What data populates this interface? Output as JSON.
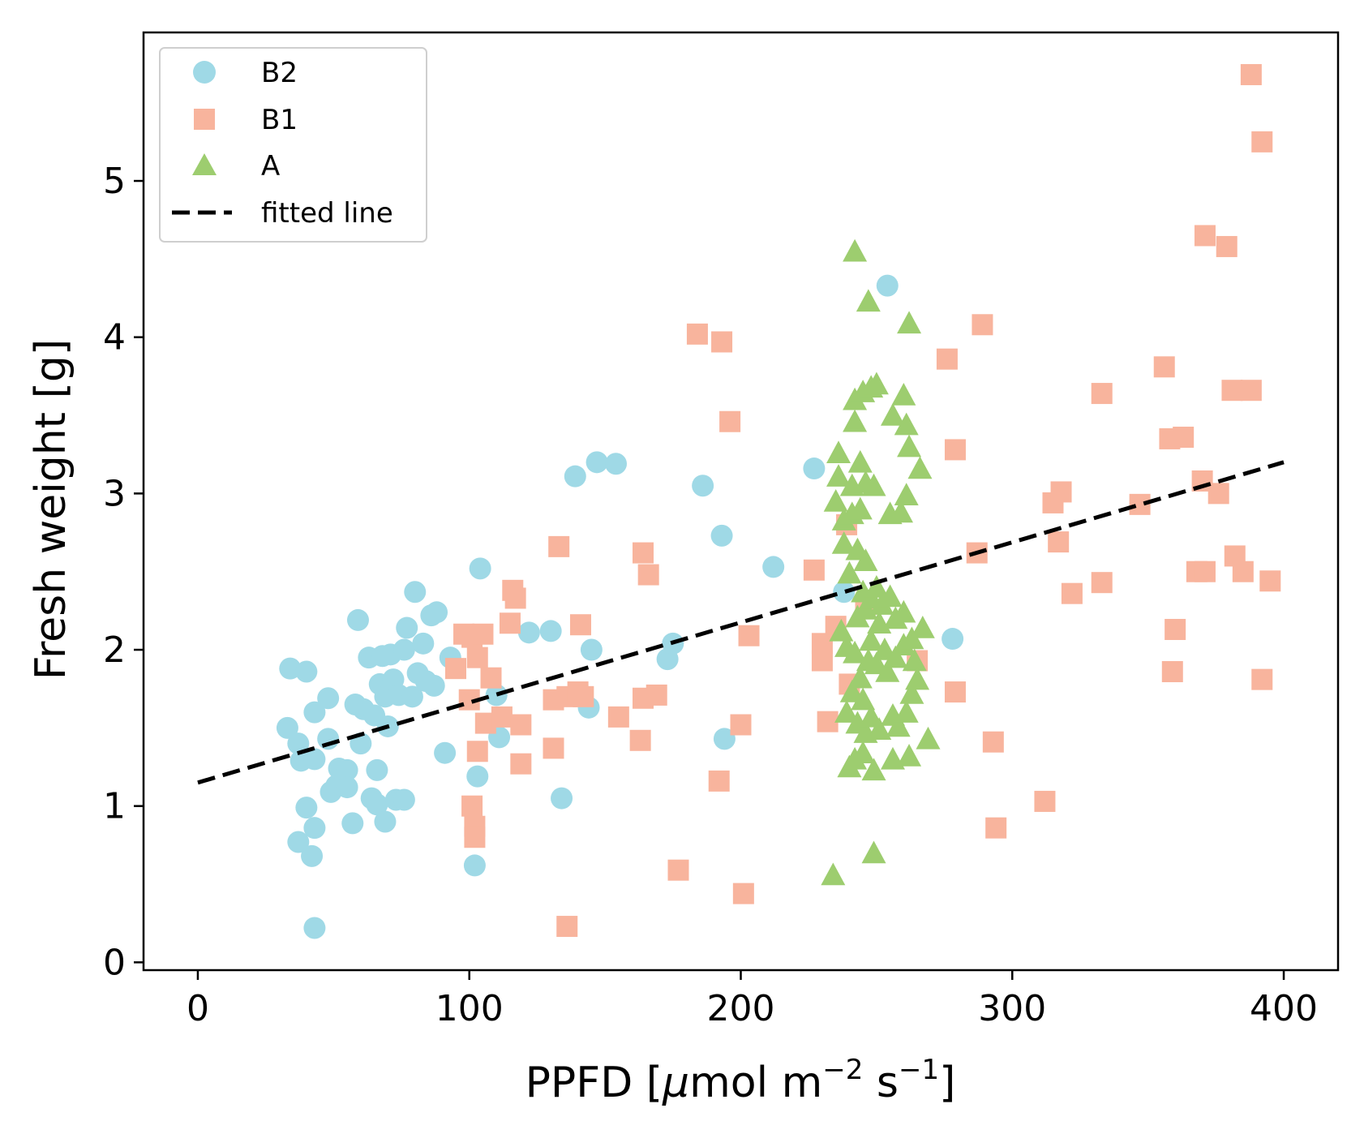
{
  "chart_data": {
    "type": "scatter",
    "xlabel": "PPFD [μmol m⁻² s⁻¹]",
    "xlabel_parts": {
      "pre": "PPFD [",
      "mu": "μ",
      "mol": "mol m",
      "exp1": "−2",
      "s": " s",
      "exp2": "−1",
      "post": "]"
    },
    "ylabel": "Fresh weight [g]",
    "xlim": [
      -20,
      420
    ],
    "ylim": [
      -0.05,
      5.95
    ],
    "xticks": [
      0,
      100,
      200,
      300,
      400
    ],
    "yticks": [
      0,
      1,
      2,
      3,
      4,
      5
    ],
    "xtick_labels": [
      "0",
      "100",
      "200",
      "300",
      "400"
    ],
    "ytick_labels": [
      "0",
      "1",
      "2",
      "3",
      "4",
      "5"
    ],
    "grid": false,
    "legend_position": "top-left",
    "legend": [
      {
        "label": "B2",
        "marker": "circle",
        "color": "#9fd9e6"
      },
      {
        "label": "B1",
        "marker": "square",
        "color": "#f8b49d"
      },
      {
        "label": "A",
        "marker": "triangle",
        "color": "#9dcd6f"
      },
      {
        "label": "fitted line",
        "marker": "dashed-line",
        "color": "#000000"
      }
    ],
    "series": [
      {
        "name": "B2",
        "marker": "circle",
        "color": "#9fd9e6",
        "points": [
          [
            34,
            1.88
          ],
          [
            40,
            1.86
          ],
          [
            33,
            1.5
          ],
          [
            37,
            1.4
          ],
          [
            38,
            1.29
          ],
          [
            40,
            0.99
          ],
          [
            37,
            0.77
          ],
          [
            42,
            0.68
          ],
          [
            43,
            0.86
          ],
          [
            43,
            0.22
          ],
          [
            43,
            1.3
          ],
          [
            43,
            1.6
          ],
          [
            48,
            1.43
          ],
          [
            48,
            1.69
          ],
          [
            49,
            1.09
          ],
          [
            51,
            1.13
          ],
          [
            52,
            1.24
          ],
          [
            55,
            1.23
          ],
          [
            55,
            1.12
          ],
          [
            57,
            0.89
          ],
          [
            58,
            1.65
          ],
          [
            59,
            2.19
          ],
          [
            60,
            1.4
          ],
          [
            61,
            1.62
          ],
          [
            63,
            1.95
          ],
          [
            64,
            1.05
          ],
          [
            65,
            1.58
          ],
          [
            66,
            1.23
          ],
          [
            66,
            1.01
          ],
          [
            67,
            1.78
          ],
          [
            68,
            1.96
          ],
          [
            69,
            1.7
          ],
          [
            69,
            0.9
          ],
          [
            70,
            1.51
          ],
          [
            71,
            1.97
          ],
          [
            72,
            1.81
          ],
          [
            73,
            1.04
          ],
          [
            74,
            1.71
          ],
          [
            76,
            1.04
          ],
          [
            76,
            2.0
          ],
          [
            77,
            2.14
          ],
          [
            79,
            1.7
          ],
          [
            80,
            2.37
          ],
          [
            81,
            1.85
          ],
          [
            83,
            2.04
          ],
          [
            84,
            1.8
          ],
          [
            86,
            2.22
          ],
          [
            87,
            1.77
          ],
          [
            88,
            2.24
          ],
          [
            91,
            1.34
          ],
          [
            93,
            1.95
          ],
          [
            102,
            0.62
          ],
          [
            103,
            1.19
          ],
          [
            104,
            2.52
          ],
          [
            110,
            1.71
          ],
          [
            111,
            1.44
          ],
          [
            122,
            2.11
          ],
          [
            130,
            2.12
          ],
          [
            134,
            1.05
          ],
          [
            139,
            3.11
          ],
          [
            144,
            1.63
          ],
          [
            145,
            2.0
          ],
          [
            147,
            3.2
          ],
          [
            154,
            3.19
          ],
          [
            173,
            1.94
          ],
          [
            175,
            2.04
          ],
          [
            186,
            3.05
          ],
          [
            193,
            2.73
          ],
          [
            194,
            1.43
          ],
          [
            212,
            2.53
          ],
          [
            227,
            3.16
          ],
          [
            238,
            2.37
          ],
          [
            254,
            4.33
          ],
          [
            278,
            2.07
          ]
        ]
      },
      {
        "name": "B1",
        "marker": "square",
        "color": "#f8b49d",
        "points": [
          [
            95,
            1.88
          ],
          [
            98,
            2.1
          ],
          [
            100,
            1.68
          ],
          [
            101,
            1.0
          ],
          [
            101,
            2.08
          ],
          [
            102,
            0.87
          ],
          [
            102,
            0.8
          ],
          [
            103,
            1.35
          ],
          [
            103,
            1.95
          ],
          [
            105,
            2.1
          ],
          [
            106,
            1.53
          ],
          [
            108,
            1.82
          ],
          [
            112,
            1.57
          ],
          [
            115,
            2.17
          ],
          [
            116,
            2.38
          ],
          [
            117,
            2.33
          ],
          [
            119,
            1.52
          ],
          [
            119,
            1.27
          ],
          [
            131,
            1.37
          ],
          [
            131,
            1.68
          ],
          [
            133,
            2.66
          ],
          [
            136,
            1.7
          ],
          [
            136,
            0.23
          ],
          [
            140,
            1.73
          ],
          [
            141,
            2.16
          ],
          [
            142,
            1.7
          ],
          [
            155,
            1.57
          ],
          [
            163,
            1.42
          ],
          [
            164,
            1.69
          ],
          [
            164,
            2.62
          ],
          [
            166,
            2.48
          ],
          [
            169,
            1.71
          ],
          [
            177,
            0.59
          ],
          [
            184,
            4.02
          ],
          [
            192,
            1.16
          ],
          [
            193,
            3.97
          ],
          [
            196,
            3.46
          ],
          [
            200,
            1.52
          ],
          [
            201,
            0.44
          ],
          [
            203,
            2.09
          ],
          [
            227,
            2.51
          ],
          [
            230,
            2.04
          ],
          [
            230,
            1.93
          ],
          [
            232,
            1.54
          ],
          [
            235,
            2.15
          ],
          [
            239,
            2.8
          ],
          [
            240,
            1.78
          ],
          [
            246,
            2.29
          ],
          [
            265,
            1.93
          ],
          [
            276,
            3.86
          ],
          [
            279,
            3.28
          ],
          [
            279,
            1.73
          ],
          [
            287,
            2.62
          ],
          [
            289,
            4.08
          ],
          [
            293,
            1.41
          ],
          [
            294,
            0.86
          ],
          [
            312,
            1.03
          ],
          [
            315,
            2.94
          ],
          [
            317,
            2.69
          ],
          [
            318,
            3.01
          ],
          [
            322,
            2.36
          ],
          [
            333,
            3.64
          ],
          [
            333,
            2.43
          ],
          [
            347,
            2.93
          ],
          [
            356,
            3.81
          ],
          [
            358,
            3.35
          ],
          [
            359,
            1.86
          ],
          [
            360,
            2.13
          ],
          [
            363,
            3.36
          ],
          [
            368,
            2.5
          ],
          [
            370,
            3.08
          ],
          [
            371,
            4.65
          ],
          [
            371,
            2.5
          ],
          [
            376,
            3.0
          ],
          [
            379,
            4.58
          ],
          [
            381,
            3.66
          ],
          [
            382,
            2.6
          ],
          [
            385,
            2.5
          ],
          [
            388,
            3.66
          ],
          [
            388,
            5.68
          ],
          [
            392,
            1.81
          ],
          [
            392,
            5.25
          ],
          [
            395,
            2.44
          ]
        ]
      },
      {
        "name": "A",
        "marker": "triangle",
        "color": "#9dcd6f",
        "points": [
          [
            234,
            0.56
          ],
          [
            235,
            2.95
          ],
          [
            236,
            3.26
          ],
          [
            236,
            3.11
          ],
          [
            237,
            2.12
          ],
          [
            238,
            2.83
          ],
          [
            238,
            2.68
          ],
          [
            239,
            1.6
          ],
          [
            239,
            2.02
          ],
          [
            240,
            1.25
          ],
          [
            240,
            2.49
          ],
          [
            241,
            3.05
          ],
          [
            241,
            2.87
          ],
          [
            241,
            1.73
          ],
          [
            242,
            3.6
          ],
          [
            242,
            3.46
          ],
          [
            242,
            1.98
          ],
          [
            242,
            1.3
          ],
          [
            242,
            4.55
          ],
          [
            243,
            2.64
          ],
          [
            243,
            2.21
          ],
          [
            243,
            1.53
          ],
          [
            244,
            3.2
          ],
          [
            244,
            2.9
          ],
          [
            244,
            1.82
          ],
          [
            245,
            3.65
          ],
          [
            245,
            2.37
          ],
          [
            245,
            1.68
          ],
          [
            245,
            1.34
          ],
          [
            246,
            2.57
          ],
          [
            246,
            3.07
          ],
          [
            246,
            2.26
          ],
          [
            246,
            1.47
          ],
          [
            247,
            4.23
          ],
          [
            247,
            1.93
          ],
          [
            248,
            3.68
          ],
          [
            248,
            2.33
          ],
          [
            248,
            2.06
          ],
          [
            248,
            1.57
          ],
          [
            249,
            3.05
          ],
          [
            249,
            1.23
          ],
          [
            249,
            0.7
          ],
          [
            250,
            3.7
          ],
          [
            250,
            2.4
          ],
          [
            250,
            1.91
          ],
          [
            251,
            2.17
          ],
          [
            251,
            1.49
          ],
          [
            252,
            2.29
          ],
          [
            253,
            2.0
          ],
          [
            254,
            1.86
          ],
          [
            255,
            2.87
          ],
          [
            255,
            2.34
          ],
          [
            256,
            3.5
          ],
          [
            256,
            1.58
          ],
          [
            256,
            1.3
          ],
          [
            257,
            2.2
          ],
          [
            257,
            1.95
          ],
          [
            258,
            1.51
          ],
          [
            259,
            2.88
          ],
          [
            260,
            3.63
          ],
          [
            260,
            2.03
          ],
          [
            260,
            2.24
          ],
          [
            261,
            3.44
          ],
          [
            261,
            2.99
          ],
          [
            261,
            1.6
          ],
          [
            262,
            1.32
          ],
          [
            262,
            3.3
          ],
          [
            262,
            4.09
          ],
          [
            263,
            1.72
          ],
          [
            263,
            2.07
          ],
          [
            264,
            1.93
          ],
          [
            265,
            1.81
          ],
          [
            266,
            3.16
          ],
          [
            267,
            2.14
          ],
          [
            269,
            1.43
          ]
        ]
      }
    ],
    "fitted_line": {
      "name": "fitted line",
      "x": [
        0,
        400
      ],
      "y": [
        1.15,
        3.2
      ],
      "style": "dashed",
      "color": "#000000"
    }
  }
}
